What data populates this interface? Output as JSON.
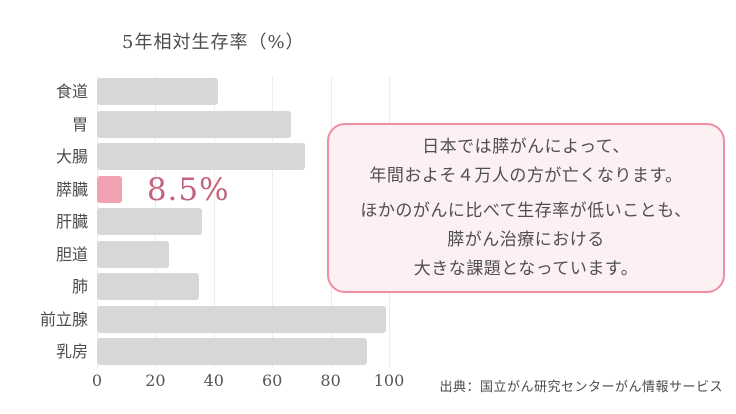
{
  "chart_data": {
    "type": "bar",
    "orientation": "horizontal",
    "title": "5年相対生存率（%）",
    "categories": [
      "食道",
      "胃",
      "大腸",
      "膵臓",
      "肝臓",
      "胆道",
      "肺",
      "前立腺",
      "乳房"
    ],
    "values": [
      41.5,
      66.6,
      71.4,
      8.5,
      35.8,
      24.5,
      34.9,
      99.1,
      92.3
    ],
    "xlabel": "",
    "ylabel": "",
    "xlim": [
      0,
      100
    ],
    "x_ticks": [
      0,
      20,
      40,
      60,
      80,
      100
    ],
    "grid": true,
    "legend": false,
    "bar_color": "#d7d7d7",
    "grid_color": "#efecec",
    "highlight": {
      "index": 3,
      "label": "8.5%",
      "bar_color": "#f2a1b0",
      "label_color": "#c3647c"
    }
  },
  "callout": {
    "lines": [
      "日本では膵がんによって、",
      "年間およそ４万人の方が亡くなります。",
      "ほかのがんに比べて生存率が低いことも、",
      "膵がん治療における",
      "大きな課題となっています。"
    ],
    "border_color": "#f08ea4",
    "background_color": "#fdf0f2"
  },
  "source": {
    "text": "出典：国立がん研究センターがん情報サービス"
  }
}
